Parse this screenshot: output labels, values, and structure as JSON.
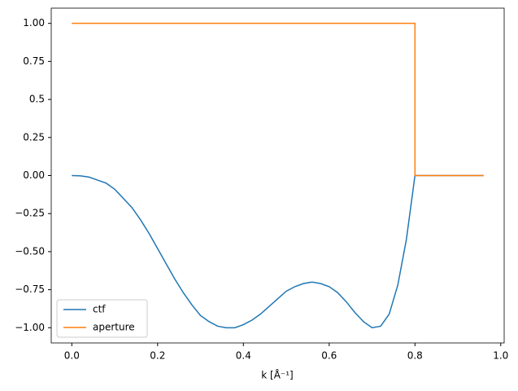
{
  "chart_data": {
    "type": "line",
    "xlabel": "k [Å⁻¹]",
    "xlim": [
      -0.048,
      1.008
    ],
    "ylim": [
      -1.1,
      1.1
    ],
    "xticks": [
      {
        "value": 0,
        "label": "0.0"
      },
      0.2,
      0.4,
      0.6,
      0.8,
      {
        "value": 1,
        "label": "1.0"
      }
    ],
    "yticks": [
      {
        "value": 1,
        "label": "1.00"
      },
      0.75,
      0.5,
      0.25,
      {
        "value": 0,
        "label": "0.00"
      },
      {
        "value": -0.25,
        "label": "−0.25"
      },
      {
        "value": -0.5,
        "label": "−0.50"
      },
      {
        "value": -0.75,
        "label": "−0.75"
      },
      {
        "value": -1,
        "label": "−1.00"
      }
    ],
    "legend": "lower left",
    "series": [
      {
        "name": "ctf",
        "color": "#1f77b4",
        "x": [
          0,
          0.02,
          0.04,
          0.06,
          0.08,
          0.1,
          0.12,
          0.14,
          0.16,
          0.18,
          0.2,
          0.22,
          0.24,
          0.26,
          0.28,
          0.3,
          0.32,
          0.34,
          0.36,
          0.38,
          0.4,
          0.42,
          0.44,
          0.46,
          0.48,
          0.5,
          0.52,
          0.54,
          0.56,
          0.58,
          0.6,
          0.62,
          0.64,
          0.66,
          0.68,
          0.7,
          0.72,
          0.74,
          0.76,
          0.78,
          0.8,
          0.82,
          0.84,
          0.86,
          0.88,
          0.9,
          0.92,
          0.94,
          0.96
        ],
        "values": [
          0,
          -0.002,
          -0.01,
          -0.03,
          -0.05,
          -0.09,
          -0.15,
          -0.21,
          -0.29,
          -0.38,
          -0.48,
          -0.58,
          -0.68,
          -0.77,
          -0.85,
          -0.92,
          -0.96,
          -0.99,
          -1.0,
          -1.0,
          -0.98,
          -0.95,
          -0.91,
          -0.86,
          -0.81,
          -0.76,
          -0.73,
          -0.71,
          -0.7,
          -0.71,
          -0.73,
          -0.77,
          -0.83,
          -0.9,
          -0.96,
          -1.0,
          -0.99,
          -0.91,
          -0.72,
          -0.42,
          0,
          0,
          0,
          0,
          0,
          0,
          0,
          0,
          0
        ]
      },
      {
        "name": "aperture",
        "color": "#ff7f0e",
        "x": [
          0,
          0.8,
          0.8,
          0.96
        ],
        "values": [
          1,
          1,
          0,
          0
        ]
      }
    ]
  }
}
